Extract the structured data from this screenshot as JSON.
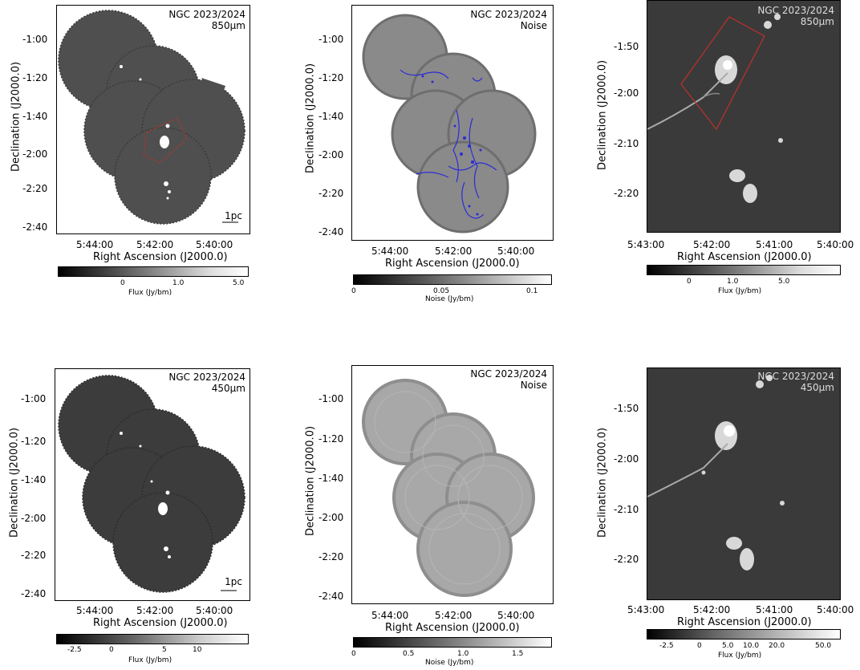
{
  "panels": [
    {
      "name": "flux-850",
      "annotation_line1": "NGC 2023/2024",
      "annotation_line2": "850μm",
      "yticks": [
        "-1:00",
        "-1:20",
        "-1:40",
        "-2:00",
        "-2:20",
        "-2:40"
      ],
      "xticks": [
        "5:44:00",
        "5:42:00",
        "5:40:00"
      ],
      "ylabel": "Declination (J2000.0)",
      "xlabel": "Right Ascension (J2000.0)",
      "scalebar_label": "1pc",
      "colorbar_ticks": [
        "0",
        "1.0",
        "5.0"
      ],
      "colorbar_title": "Flux (Jy/bm)"
    },
    {
      "name": "noise-850",
      "annotation_line1": "NGC 2023/2024",
      "annotation_line2": "Noise",
      "yticks": [
        "-1:00",
        "-1:20",
        "-1:40",
        "-2:00",
        "-2:20",
        "-2:40"
      ],
      "xticks": [
        "5:44:00",
        "5:42:00",
        "5:40:00"
      ],
      "ylabel": "Declination (J2000.0)",
      "xlabel": "Right Ascension (J2000.0)",
      "colorbar_ticks": [
        "0",
        "0.05",
        "0.1"
      ],
      "colorbar_title": "Noise (Jy/bm)"
    },
    {
      "name": "zoom-850",
      "annotation_line1": "NGC 2023/2024",
      "annotation_line2": "850μm",
      "yticks": [
        "-1:50",
        "-2:00",
        "-2:10",
        "-2:20"
      ],
      "xticks": [
        "5:43:00",
        "5:42:00",
        "5:41:00",
        "5:40:00"
      ],
      "ylabel": "Declination (J2000.0)",
      "xlabel": "Right Ascension (J2000.0)",
      "colorbar_ticks": [
        "0",
        "1.0",
        "5.0"
      ],
      "colorbar_title": "Flux (Jy/bm)"
    },
    {
      "name": "flux-450",
      "annotation_line1": "NGC 2023/2024",
      "annotation_line2": "450μm",
      "yticks": [
        "-1:00",
        "-1:20",
        "-1:40",
        "-2:00",
        "-2:20",
        "-2:40"
      ],
      "xticks": [
        "5:44:00",
        "5:42:00",
        "5:40:00"
      ],
      "ylabel": "Declination (J2000.0)",
      "xlabel": "Right Ascension (J2000.0)",
      "scalebar_label": "1pc",
      "colorbar_ticks": [
        "-2.5",
        "0",
        "5",
        "10"
      ],
      "colorbar_title": "Flux (Jy/bm)"
    },
    {
      "name": "noise-450",
      "annotation_line1": "NGC 2023/2024",
      "annotation_line2": "Noise",
      "yticks": [
        "-1:00",
        "-1:20",
        "-1:40",
        "-2:00",
        "-2:20",
        "-2:40"
      ],
      "xticks": [
        "5:44:00",
        "5:42:00",
        "5:40:00"
      ],
      "ylabel": "Declination (J2000.0)",
      "xlabel": "Right Ascension (J2000.0)",
      "colorbar_ticks": [
        "0",
        "0.5",
        "1.0",
        "1.5"
      ],
      "colorbar_title": "Noise (Jy/bm)"
    },
    {
      "name": "zoom-450",
      "annotation_line1": "NGC 2023/2024",
      "annotation_line2": "450μm",
      "yticks": [
        "-1:50",
        "-2:00",
        "-2:10",
        "-2:20"
      ],
      "xticks": [
        "5:43:00",
        "5:42:00",
        "5:41:00",
        "5:40:00"
      ],
      "ylabel": "Declination (J2000.0)",
      "xlabel": "Right Ascension (J2000.0)",
      "colorbar_ticks": [
        "-2.5",
        "0",
        "5.0",
        "10.0",
        "20.0",
        "50.0"
      ],
      "colorbar_title": "Flux (Jy/bm)"
    }
  ],
  "colors": {
    "map_background": "#505050",
    "zoom_background": "#3a3a3a",
    "noise_disk": "#8a8a8a",
    "contour": "#2b2bd8",
    "region_box": "#c0302c"
  }
}
